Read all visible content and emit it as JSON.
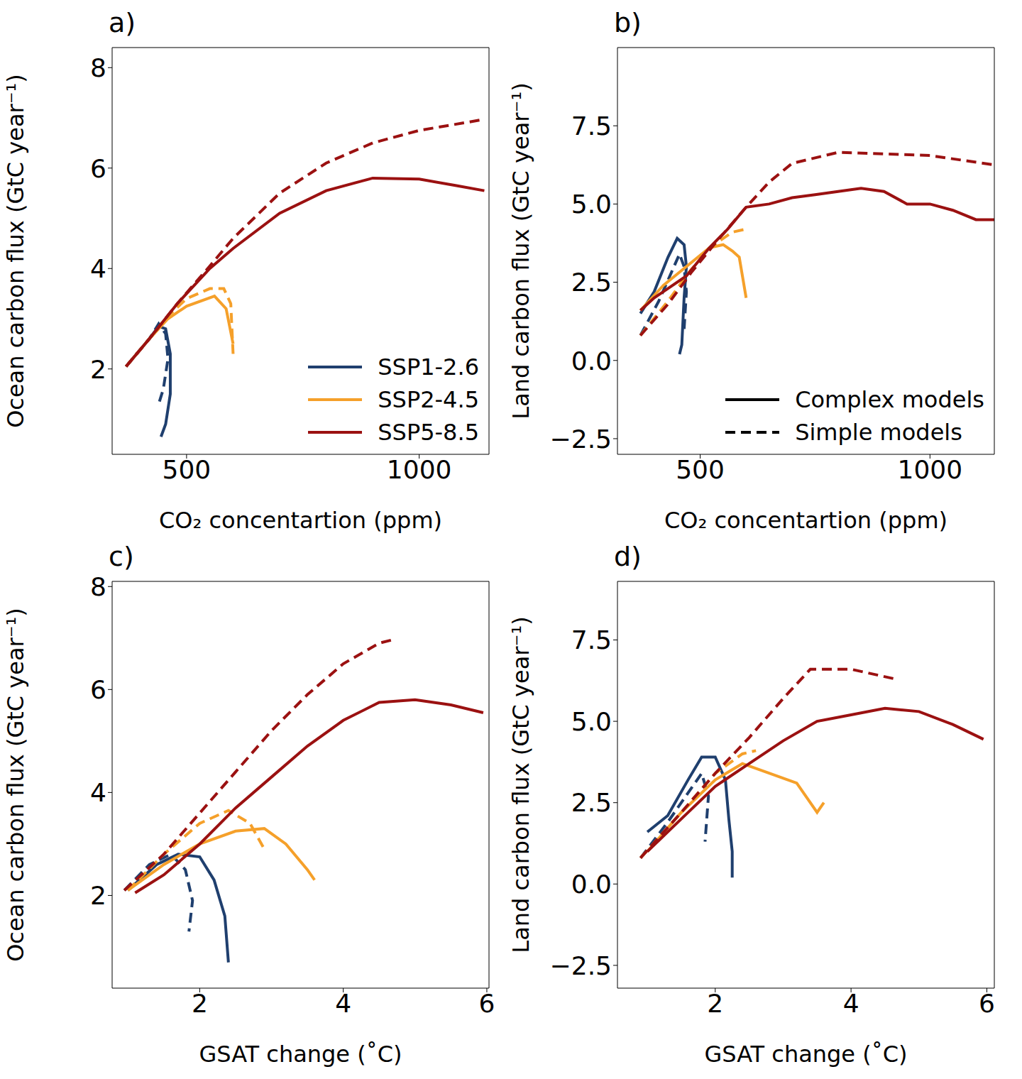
{
  "chart_data": [
    {
      "type": "line",
      "title": "a)",
      "x_label": "CO₂ concentartion (ppm)",
      "y_label": "Ocean carbon flux (GtC year⁻¹)",
      "xlim": [
        340,
        1150
      ],
      "xticks": [
        500,
        1000
      ],
      "ylim": [
        0.3,
        8.4
      ],
      "yticks": [
        2,
        4,
        6,
        8
      ],
      "legend": "lower right",
      "series": [
        {
          "name": "SSP1-2.6",
          "color": "#1f3f6e",
          "line_style": "solid",
          "x": [
            370,
            420,
            440,
            455,
            465,
            465,
            455,
            445
          ],
          "values": [
            2.05,
            2.6,
            2.85,
            2.8,
            2.3,
            1.5,
            0.9,
            0.65
          ]
        },
        {
          "name": "SSP1-2.6",
          "color": "#1f3f6e",
          "line_style": "dashed",
          "x": [
            370,
            420,
            440,
            455,
            460,
            450,
            440
          ],
          "values": [
            2.05,
            2.6,
            2.9,
            2.7,
            2.2,
            1.6,
            1.3
          ]
        },
        {
          "name": "SSP2-4.5",
          "color": "#f5a02a",
          "line_style": "solid",
          "x": [
            370,
            420,
            460,
            500,
            560,
            585,
            600
          ],
          "values": [
            2.05,
            2.6,
            3.0,
            3.25,
            3.45,
            3.2,
            2.5
          ]
        },
        {
          "name": "SSP2-4.5",
          "color": "#f5a02a",
          "line_style": "dashed",
          "x": [
            370,
            420,
            460,
            500,
            550,
            580,
            595,
            600
          ],
          "values": [
            2.05,
            2.6,
            3.05,
            3.4,
            3.6,
            3.6,
            3.3,
            2.3
          ]
        },
        {
          "name": "SSP5-8.5",
          "color": "#9b1111",
          "line_style": "solid",
          "x": [
            370,
            420,
            480,
            550,
            600,
            700,
            800,
            900,
            1000,
            1080,
            1140
          ],
          "values": [
            2.05,
            2.6,
            3.3,
            4.0,
            4.4,
            5.1,
            5.55,
            5.8,
            5.78,
            5.65,
            5.55
          ]
        },
        {
          "name": "SSP5-8.5",
          "color": "#9b1111",
          "line_style": "dashed",
          "x": [
            370,
            420,
            480,
            550,
            600,
            700,
            800,
            900,
            1000,
            1140
          ],
          "values": [
            2.05,
            2.6,
            3.3,
            4.05,
            4.6,
            5.5,
            6.1,
            6.5,
            6.75,
            6.97
          ]
        }
      ]
    },
    {
      "type": "line",
      "title": "b)",
      "x_label": "CO₂ concentartion (ppm)",
      "y_label": "Land carbon flux (GtC year⁻¹)",
      "xlim": [
        320,
        1140
      ],
      "xticks": [
        500,
        1000
      ],
      "ylim": [
        -3,
        10
      ],
      "yticks": [
        {
          "value": -2.5,
          "label": "−2.5"
        },
        {
          "value": 0,
          "label": "0.0"
        },
        2.5,
        {
          "value": 5,
          "label": "5.0"
        },
        7.5
      ],
      "legend": "lower right",
      "series": [
        {
          "name": "Complex models",
          "color": "#1f3f6e",
          "line_style": "solid",
          "x": [
            370,
            400,
            430,
            450,
            465,
            470,
            465,
            460,
            455
          ],
          "values": [
            1.5,
            2.2,
            3.3,
            3.9,
            3.7,
            3.0,
            2.0,
            0.5,
            0.2
          ]
        },
        {
          "name": "Simple models",
          "color": "#1f3f6e",
          "line_style": "dashed",
          "x": [
            370,
            410,
            440,
            455,
            465,
            470,
            465
          ],
          "values": [
            0.8,
            1.9,
            2.9,
            3.4,
            3.0,
            2.2,
            1.0
          ]
        },
        {
          "name": "Complex models",
          "color": "#f5a02a",
          "line_style": "solid",
          "x": [
            370,
            420,
            470,
            520,
            550,
            570,
            585,
            600
          ],
          "values": [
            1.6,
            2.4,
            3.0,
            3.6,
            3.7,
            3.5,
            3.3,
            2.0
          ]
        },
        {
          "name": "Simple models",
          "color": "#f5a02a",
          "line_style": "dashed",
          "x": [
            370,
            430,
            480,
            530,
            570,
            600
          ],
          "values": [
            0.8,
            1.9,
            2.9,
            3.7,
            4.1,
            4.2
          ]
        },
        {
          "name": "Complex models",
          "color": "#9b1111",
          "line_style": "solid",
          "x": [
            370,
            400,
            430,
            470,
            520,
            560,
            600,
            650,
            700,
            750,
            800,
            850,
            900,
            950,
            1000,
            1050,
            1100,
            1140
          ],
          "values": [
            1.6,
            2.0,
            2.3,
            2.7,
            3.6,
            4.2,
            4.9,
            5.0,
            5.2,
            5.3,
            5.4,
            5.5,
            5.4,
            5.0,
            5.0,
            4.8,
            4.5,
            4.5
          ]
        },
        {
          "name": "Simple models",
          "color": "#9b1111",
          "line_style": "dashed",
          "x": [
            370,
            430,
            480,
            530,
            600,
            650,
            700,
            800,
            900,
            1000,
            1140
          ],
          "values": [
            0.8,
            1.8,
            2.8,
            3.7,
            4.9,
            5.7,
            6.3,
            6.65,
            6.6,
            6.55,
            6.25
          ]
        }
      ]
    },
    {
      "type": "line",
      "title": "c)",
      "x_label": "GSAT change (˚C)",
      "y_label": "Ocean carbon flux (GtC year⁻¹)",
      "xlim": [
        0.78,
        6.03
      ],
      "xticks": [
        2,
        4,
        6
      ],
      "ylim": [
        0.2,
        8.1
      ],
      "yticks": [
        2,
        4,
        6,
        8
      ],
      "series": [
        {
          "color": "#1f3f6e",
          "line_style": "solid",
          "x": [
            1.0,
            1.4,
            1.7,
            2.0,
            2.2,
            2.35,
            2.4
          ],
          "values": [
            2.1,
            2.6,
            2.8,
            2.75,
            2.3,
            1.6,
            0.7
          ]
        },
        {
          "color": "#1f3f6e",
          "line_style": "dashed",
          "x": [
            0.95,
            1.3,
            1.6,
            1.8,
            1.9,
            1.85
          ],
          "values": [
            2.1,
            2.6,
            2.8,
            2.5,
            1.9,
            1.3
          ]
        },
        {
          "color": "#f5a02a",
          "line_style": "solid",
          "x": [
            1.0,
            1.5,
            2.0,
            2.5,
            2.9,
            3.2,
            3.5,
            3.6
          ],
          "values": [
            2.1,
            2.6,
            3.0,
            3.25,
            3.3,
            3.0,
            2.5,
            2.3
          ]
        },
        {
          "color": "#f5a02a",
          "line_style": "dashed",
          "x": [
            1.0,
            1.5,
            2.0,
            2.4,
            2.7,
            2.9
          ],
          "values": [
            2.1,
            2.8,
            3.4,
            3.65,
            3.4,
            2.9
          ]
        },
        {
          "color": "#9b1111",
          "line_style": "solid",
          "x": [
            1.1,
            1.5,
            2.0,
            2.5,
            3.0,
            3.5,
            4.0,
            4.5,
            5.0,
            5.5,
            5.95
          ],
          "values": [
            2.05,
            2.4,
            3.0,
            3.7,
            4.3,
            4.9,
            5.4,
            5.75,
            5.8,
            5.7,
            5.55
          ]
        },
        {
          "color": "#9b1111",
          "line_style": "dashed",
          "x": [
            0.95,
            1.5,
            2.0,
            2.5,
            3.0,
            3.5,
            4.0,
            4.5,
            4.7
          ],
          "values": [
            2.1,
            2.8,
            3.6,
            4.4,
            5.2,
            5.9,
            6.5,
            6.9,
            6.97
          ]
        }
      ]
    },
    {
      "type": "line",
      "title": "d)",
      "x_label": "GSAT change (˚C)",
      "y_label": "Land carbon flux (GtC year⁻¹)",
      "xlim": [
        0.56,
        6.11
      ],
      "xticks": [
        2,
        4,
        6
      ],
      "ylim": [
        -3.2,
        9.3
      ],
      "yticks": [
        {
          "value": -2.5,
          "label": "−2.5"
        },
        {
          "value": 0,
          "label": "0.0"
        },
        2.5,
        {
          "value": 5,
          "label": "5.0"
        },
        7.5
      ],
      "series": [
        {
          "color": "#1f3f6e",
          "line_style": "solid",
          "x": [
            1.0,
            1.3,
            1.6,
            1.8,
            2.0,
            2.15,
            2.2,
            2.25,
            2.25
          ],
          "values": [
            1.6,
            2.1,
            3.2,
            3.9,
            3.9,
            3.2,
            2.0,
            1.0,
            0.2
          ]
        },
        {
          "color": "#1f3f6e",
          "line_style": "dashed",
          "x": [
            0.9,
            1.3,
            1.6,
            1.8,
            1.9,
            1.85
          ],
          "values": [
            0.8,
            1.9,
            2.8,
            3.4,
            2.7,
            1.3
          ]
        },
        {
          "color": "#f5a02a",
          "line_style": "solid",
          "x": [
            1.0,
            1.5,
            2.0,
            2.4,
            2.8,
            3.2,
            3.5,
            3.6
          ],
          "values": [
            1.0,
            2.2,
            3.2,
            3.7,
            3.4,
            3.1,
            2.2,
            2.5
          ]
        },
        {
          "color": "#f5a02a",
          "line_style": "dashed",
          "x": [
            0.9,
            1.5,
            2.0,
            2.4,
            2.6
          ],
          "values": [
            0.8,
            2.2,
            3.4,
            4.0,
            4.1
          ]
        },
        {
          "color": "#9b1111",
          "line_style": "solid",
          "x": [
            1.0,
            1.5,
            2.0,
            2.5,
            3.0,
            3.5,
            4.0,
            4.5,
            5.0,
            5.5,
            5.95
          ],
          "values": [
            1.0,
            2.0,
            3.0,
            3.7,
            4.4,
            5.0,
            5.2,
            5.4,
            5.3,
            4.9,
            4.45
          ]
        },
        {
          "color": "#9b1111",
          "line_style": "dashed",
          "x": [
            0.9,
            1.5,
            2.0,
            2.5,
            3.0,
            3.4,
            4.0,
            4.65
          ],
          "values": [
            0.8,
            2.2,
            3.4,
            4.5,
            5.7,
            6.6,
            6.6,
            6.3
          ]
        }
      ]
    }
  ]
}
